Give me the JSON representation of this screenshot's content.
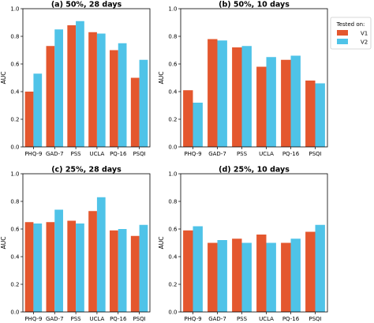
{
  "legend": {
    "title": "Tested on:",
    "items": [
      {
        "label": "V1",
        "color": "#e4572e"
      },
      {
        "label": "V2",
        "color": "#4fc3e8"
      }
    ]
  },
  "chart_data": [
    {
      "type": "bar",
      "title": "(a) 50%, 28 days",
      "ylabel": "AUC",
      "ylim": [
        0.0,
        1.0
      ],
      "yticks": [
        "0.0",
        "0.2",
        "0.4",
        "0.6",
        "0.8",
        "1.0"
      ],
      "categories": [
        "PHQ-9",
        "GAD-7",
        "PSS",
        "UCLA",
        "PQ-16",
        "PSQI"
      ],
      "series": [
        {
          "name": "V1",
          "color": "#e4572e",
          "values": [
            0.4,
            0.73,
            0.88,
            0.83,
            0.7,
            0.5
          ]
        },
        {
          "name": "V2",
          "color": "#4fc3e8",
          "values": [
            0.53,
            0.85,
            0.91,
            0.82,
            0.75,
            0.63
          ]
        }
      ]
    },
    {
      "type": "bar",
      "title": "(b) 50%, 10 days",
      "ylabel": "AUC",
      "ylim": [
        0.0,
        1.0
      ],
      "yticks": [
        "0.0",
        "0.2",
        "0.4",
        "0.6",
        "0.8",
        "1.0"
      ],
      "categories": [
        "PHQ-9",
        "GAD-7",
        "PSS",
        "UCLA",
        "PQ-16",
        "PSQI"
      ],
      "series": [
        {
          "name": "V1",
          "color": "#e4572e",
          "values": [
            0.41,
            0.78,
            0.72,
            0.58,
            0.63,
            0.48
          ]
        },
        {
          "name": "V2",
          "color": "#4fc3e8",
          "values": [
            0.32,
            0.77,
            0.73,
            0.65,
            0.66,
            0.46
          ]
        }
      ]
    },
    {
      "type": "bar",
      "title": "(c) 25%, 28 days",
      "ylabel": "AUC",
      "ylim": [
        0.0,
        1.0
      ],
      "yticks": [
        "0.0",
        "0.2",
        "0.4",
        "0.6",
        "0.8",
        "1.0"
      ],
      "categories": [
        "PHQ-9",
        "GAD-7",
        "PSS",
        "UCLA",
        "PQ-16",
        "PSQI"
      ],
      "series": [
        {
          "name": "V1",
          "color": "#e4572e",
          "values": [
            0.65,
            0.65,
            0.66,
            0.73,
            0.59,
            0.55
          ]
        },
        {
          "name": "V2",
          "color": "#4fc3e8",
          "values": [
            0.64,
            0.74,
            0.64,
            0.83,
            0.6,
            0.63
          ]
        }
      ]
    },
    {
      "type": "bar",
      "title": "(d) 25%, 10 days",
      "ylabel": "AUC",
      "ylim": [
        0.0,
        1.0
      ],
      "yticks": [
        "0.0",
        "0.2",
        "0.4",
        "0.6",
        "0.8",
        "1.0"
      ],
      "categories": [
        "PHQ-9",
        "GAD-7",
        "PSS",
        "UCLA",
        "PQ-16",
        "PSQI"
      ],
      "series": [
        {
          "name": "V1",
          "color": "#e4572e",
          "values": [
            0.59,
            0.5,
            0.53,
            0.56,
            0.5,
            0.58
          ]
        },
        {
          "name": "V2",
          "color": "#4fc3e8",
          "values": [
            0.62,
            0.52,
            0.5,
            0.5,
            0.53,
            0.63
          ]
        }
      ]
    }
  ]
}
